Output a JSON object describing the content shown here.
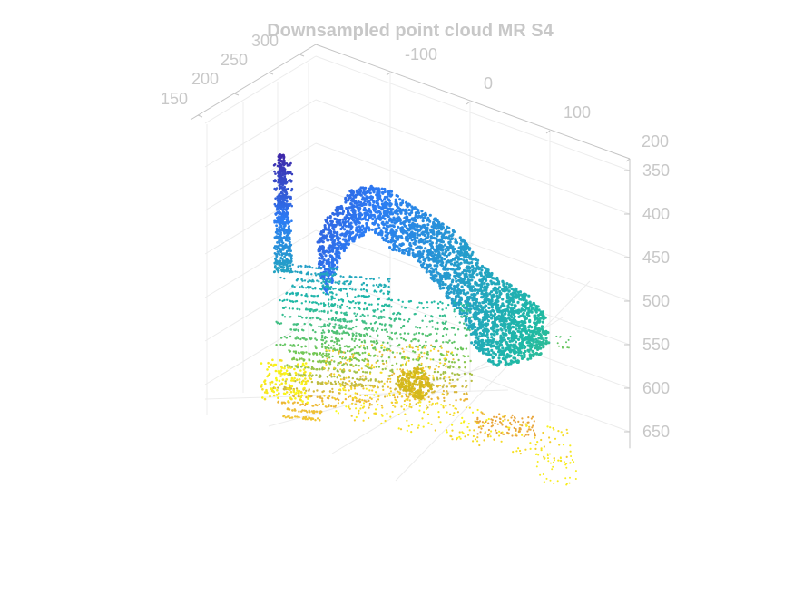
{
  "chart_data": {
    "type": "scatter",
    "subtype": "3d-point-cloud",
    "title": "Downsampled point cloud MR S4",
    "xlabel": "",
    "ylabel": "",
    "zlabel": "",
    "x_axis": {
      "ticks": [
        "-100",
        "0",
        "100",
        "200"
      ],
      "lim": [
        -200,
        200
      ]
    },
    "y_axis": {
      "ticks": [
        "150",
        "200",
        "250",
        "300"
      ],
      "lim": [
        130,
        320
      ]
    },
    "z_axis": {
      "ticks": [
        "350",
        "400",
        "450",
        "500",
        "550",
        "600",
        "650"
      ],
      "lim": [
        330,
        680
      ],
      "reversed": true
    },
    "grid": true,
    "box": false,
    "colormap": "parula",
    "color_by": "z",
    "colors": {
      "low": "#3e26a8",
      "mid_low": "#2c7cf5",
      "mid": "#1fb9a6",
      "mid_high": "#a6c837",
      "high": "#f9fb15",
      "orange": "#eba338",
      "axis": "#c4c4c4",
      "grid": "#ececec",
      "text": "#c8c8c8"
    }
  }
}
